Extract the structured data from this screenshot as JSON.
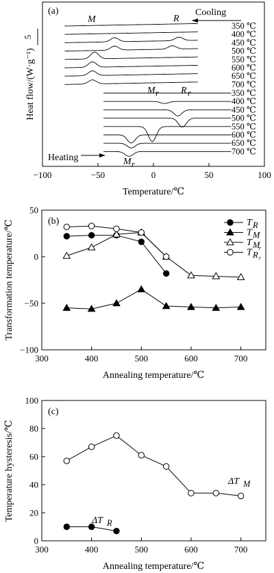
{
  "chart_data": [
    {
      "panel_label": "(a)",
      "type": "line",
      "xlabel": "Temperature/℃",
      "ylabel": "Heat flow/(W·g⁻¹)",
      "xlim": [
        -100,
        100
      ],
      "xticks": [
        "−100",
        "−50",
        "0",
        "50",
        "100"
      ],
      "scale_bar": "5",
      "cooling_label": "Cooling",
      "heating_label": "Heating",
      "peak_labels": {
        "cooling": [
          "M",
          "R"
        ],
        "heating": [
          "M",
          "r",
          "R",
          "r",
          "M",
          "r"
        ]
      },
      "cooling_curves": [
        {
          "label": "350 ℃",
          "peaks": []
        },
        {
          "label": "400 ℃",
          "peaks": []
        },
        {
          "label": "450 ℃",
          "peaks": [
            {
              "x": -35,
              "h": 6
            },
            {
              "x": 23,
              "h": 5
            }
          ]
        },
        {
          "label": "500 ℃",
          "peaks": [
            {
              "x": -35,
              "h": 6
            },
            {
              "x": 17,
              "h": 5
            }
          ]
        },
        {
          "label": "550 ℃",
          "peaks": [
            {
              "x": -53,
              "h": 10
            }
          ]
        },
        {
          "label": "600 ℃",
          "peaks": [
            {
              "x": -55,
              "h": 8
            }
          ]
        },
        {
          "label": "650 ℃",
          "peaks": [
            {
              "x": -55,
              "h": 7
            }
          ]
        },
        {
          "label": "700 ℃",
          "peaks": [
            {
              "x": -55,
              "h": 6
            }
          ]
        }
      ],
      "heating_curves": [
        {
          "label": "350 ℃",
          "peaks": []
        },
        {
          "label": "400 ℃",
          "peaks": [
            {
              "x": 10,
              "h": 3
            }
          ]
        },
        {
          "label": "450 ℃",
          "peaks": [
            {
              "x": 22,
              "h": 9
            }
          ]
        },
        {
          "label": "500 ℃",
          "peaks": [
            {
              "x": 26,
              "h": 13
            }
          ]
        },
        {
          "label": "550 ℃",
          "peaks": [
            {
              "x": -1,
              "h": 22
            }
          ]
        },
        {
          "label": "600 ℃",
          "peaks": [
            {
              "x": -20,
              "h": 12
            }
          ]
        },
        {
          "label": "650 ℃",
          "peaks": [
            {
              "x": -20,
              "h": 7
            }
          ]
        },
        {
          "label": "700 ℃",
          "peaks": [
            {
              "x": -22,
              "h": 7
            }
          ]
        }
      ]
    },
    {
      "panel_label": "(b)",
      "type": "line",
      "xlabel": "Annealing temperature/℃",
      "ylabel": "Transformation temperature/℃",
      "xlim": [
        300,
        750
      ],
      "ylim": [
        -100,
        50
      ],
      "xticks": [
        300,
        400,
        500,
        600,
        700
      ],
      "yticks": [
        -100,
        -50,
        0,
        50
      ],
      "legend_position": "top-right",
      "series": [
        {
          "name": "T",
          "sub": "R",
          "subsub": "",
          "marker": "circle-filled",
          "x": [
            350,
            400,
            450,
            500,
            550
          ],
          "y": [
            22,
            23,
            23,
            16,
            -18
          ]
        },
        {
          "name": "T",
          "sub": "M",
          "subsub": "",
          "marker": "triangle-filled",
          "x": [
            350,
            400,
            450,
            500,
            550,
            600,
            650,
            700
          ],
          "y": [
            -55,
            -56,
            -50,
            -35,
            -53,
            -54,
            -55,
            -54
          ]
        },
        {
          "name": "T",
          "sub": "M",
          "subsub": "r",
          "marker": "triangle-open",
          "x": [
            350,
            400,
            450,
            500,
            550,
            600,
            650,
            700
          ],
          "y": [
            1,
            10,
            24,
            26,
            0,
            -20,
            -21,
            -22
          ]
        },
        {
          "name": "T",
          "sub": "R",
          "subsub": "r",
          "marker": "circle-open",
          "x": [
            350,
            400,
            450,
            500,
            550
          ],
          "y": [
            32,
            33,
            30,
            26,
            0
          ]
        }
      ]
    },
    {
      "panel_label": "(c)",
      "type": "line",
      "xlabel": "Annealing temperature/℃",
      "ylabel": "Temperature hysteresis/℃",
      "xlim": [
        300,
        750
      ],
      "ylim": [
        0,
        100
      ],
      "xticks": [
        300,
        400,
        500,
        600,
        700
      ],
      "yticks": [
        0,
        20,
        40,
        60,
        80,
        100
      ],
      "series": [
        {
          "name": "ΔT",
          "sub": "M",
          "marker": "circle-open",
          "x": [
            350,
            400,
            450,
            500,
            550,
            600,
            650,
            700
          ],
          "y": [
            57,
            67,
            75,
            61,
            53,
            34,
            34,
            32
          ]
        },
        {
          "name": "ΔT",
          "sub": "R",
          "marker": "circle-filled",
          "x": [
            350,
            400,
            450
          ],
          "y": [
            10,
            10,
            7
          ]
        }
      ]
    }
  ]
}
